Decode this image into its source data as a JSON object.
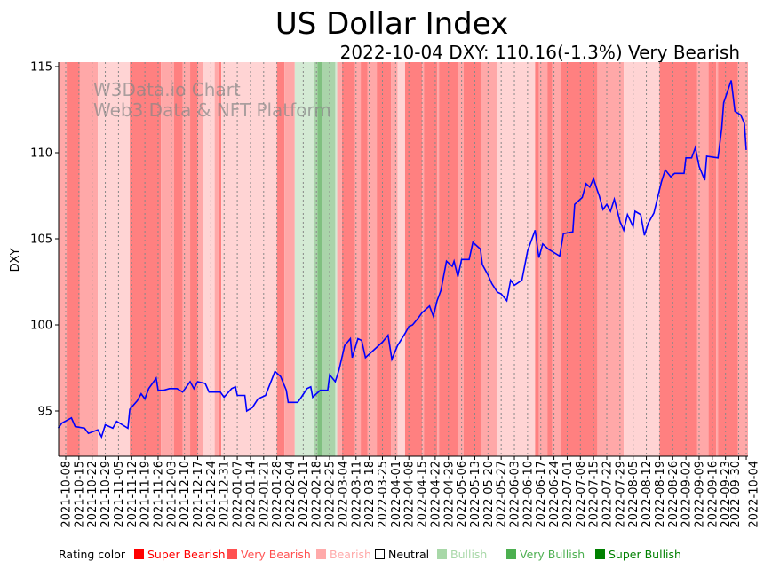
{
  "chart_data": {
    "type": "line",
    "title": "US Dollar Index",
    "subtitle": "2022-10-04 DXY: 110.16(-1.3%) Very Bearish",
    "watermark": [
      "W3Data.io Chart",
      "Web3 Data & NFT Platform"
    ],
    "xlabel": "",
    "ylabel": "DXY",
    "start_date": "2021-10-04",
    "x_unit": "days since 2021-10-04",
    "xlim": [
      0,
      366
    ],
    "ylim": [
      92.37,
      115.26
    ],
    "yticks": [
      95,
      100,
      105,
      110,
      115
    ],
    "xtick_labels": [
      "2021-10-08",
      "2021-10-15",
      "2021-10-22",
      "2021-10-29",
      "2021-11-05",
      "2021-11-12",
      "2021-11-19",
      "2021-11-26",
      "2021-12-03",
      "2021-12-10",
      "2021-12-17",
      "2021-12-24",
      "2021-12-31",
      "2022-01-07",
      "2022-01-14",
      "2022-01-21",
      "2022-01-28",
      "2022-02-04",
      "2022-02-11",
      "2022-02-18",
      "2022-02-25",
      "2022-03-04",
      "2022-03-11",
      "2022-03-18",
      "2022-03-25",
      "2022-04-01",
      "2022-04-08",
      "2022-04-15",
      "2022-04-22",
      "2022-04-29",
      "2022-05-06",
      "2022-05-13",
      "2022-05-20",
      "2022-05-27",
      "2022-06-03",
      "2022-06-10",
      "2022-06-17",
      "2022-06-24",
      "2022-07-01",
      "2022-07-08",
      "2022-07-15",
      "2022-07-22",
      "2022-07-29",
      "2022-08-05",
      "2022-08-12",
      "2022-08-19",
      "2022-08-26",
      "2022-09-02",
      "2022-09-09",
      "2022-09-16",
      "2022-09-23",
      "2022-09-30",
      "2022-10-04"
    ],
    "grid": "vertical dotted",
    "series": [
      {
        "name": "DXY",
        "color": "#0000ff",
        "points": [
          [
            0,
            94.0
          ],
          [
            2,
            94.3
          ],
          [
            7,
            94.6
          ],
          [
            9,
            94.1
          ],
          [
            14,
            94.0
          ],
          [
            16,
            93.7
          ],
          [
            21,
            93.9
          ],
          [
            23,
            93.5
          ],
          [
            25,
            94.2
          ],
          [
            29,
            94.0
          ],
          [
            31,
            94.4
          ],
          [
            37,
            94.0
          ],
          [
            38,
            95.1
          ],
          [
            42,
            95.6
          ],
          [
            44,
            96.0
          ],
          [
            46,
            95.7
          ],
          [
            48,
            96.3
          ],
          [
            52,
            96.9
          ],
          [
            53,
            96.2
          ],
          [
            56,
            96.2
          ],
          [
            59,
            96.3
          ],
          [
            63,
            96.3
          ],
          [
            66,
            96.1
          ],
          [
            70,
            96.7
          ],
          [
            72,
            96.3
          ],
          [
            74,
            96.7
          ],
          [
            78,
            96.6
          ],
          [
            80,
            96.1
          ],
          [
            86,
            96.1
          ],
          [
            88,
            95.8
          ],
          [
            92,
            96.3
          ],
          [
            94,
            96.4
          ],
          [
            95,
            95.9
          ],
          [
            99,
            95.9
          ],
          [
            100,
            95.0
          ],
          [
            103,
            95.2
          ],
          [
            106,
            95.7
          ],
          [
            110,
            95.9
          ],
          [
            115,
            97.3
          ],
          [
            118,
            97.0
          ],
          [
            121,
            96.2
          ],
          [
            122,
            95.5
          ],
          [
            127,
            95.5
          ],
          [
            129,
            95.8
          ],
          [
            132,
            96.3
          ],
          [
            134,
            96.4
          ],
          [
            135,
            95.8
          ],
          [
            139,
            96.2
          ],
          [
            143,
            96.2
          ],
          [
            144,
            97.1
          ],
          [
            147,
            96.7
          ],
          [
            149,
            97.4
          ],
          [
            152,
            98.8
          ],
          [
            155,
            99.2
          ],
          [
            156,
            98.1
          ],
          [
            159,
            99.2
          ],
          [
            161,
            99.1
          ],
          [
            163,
            98.1
          ],
          [
            166,
            98.4
          ],
          [
            172,
            99.0
          ],
          [
            175,
            99.4
          ],
          [
            177,
            98.0
          ],
          [
            180,
            98.8
          ],
          [
            184,
            99.5
          ],
          [
            186,
            99.9
          ],
          [
            188,
            100.0
          ],
          [
            191,
            100.4
          ],
          [
            193,
            100.7
          ],
          [
            197,
            101.1
          ],
          [
            199,
            100.5
          ],
          [
            201,
            101.4
          ],
          [
            203,
            102.0
          ],
          [
            206,
            103.7
          ],
          [
            209,
            103.4
          ],
          [
            210,
            103.7
          ],
          [
            212,
            102.8
          ],
          [
            214,
            103.8
          ],
          [
            218,
            103.8
          ],
          [
            220,
            104.8
          ],
          [
            224,
            104.4
          ],
          [
            225,
            103.5
          ],
          [
            228,
            102.9
          ],
          [
            230,
            102.4
          ],
          [
            233,
            101.9
          ],
          [
            235,
            101.8
          ],
          [
            238,
            101.4
          ],
          [
            240,
            102.6
          ],
          [
            242,
            102.3
          ],
          [
            246,
            102.6
          ],
          [
            249,
            104.3
          ],
          [
            253,
            105.5
          ],
          [
            255,
            103.9
          ],
          [
            257,
            104.7
          ],
          [
            260,
            104.4
          ],
          [
            263,
            104.2
          ],
          [
            266,
            104.0
          ],
          [
            268,
            105.3
          ],
          [
            273,
            105.4
          ],
          [
            274,
            107.0
          ],
          [
            278,
            107.4
          ],
          [
            280,
            108.2
          ],
          [
            282,
            108.0
          ],
          [
            284,
            108.5
          ],
          [
            286,
            107.8
          ],
          [
            287,
            107.5
          ],
          [
            289,
            106.7
          ],
          [
            291,
            107.0
          ],
          [
            293,
            106.6
          ],
          [
            295,
            107.3
          ],
          [
            298,
            106.0
          ],
          [
            300,
            105.5
          ],
          [
            302,
            106.4
          ],
          [
            305,
            105.7
          ],
          [
            306,
            106.6
          ],
          [
            309,
            106.4
          ],
          [
            311,
            105.2
          ],
          [
            313,
            105.9
          ],
          [
            316,
            106.5
          ],
          [
            320,
            108.3
          ],
          [
            322,
            109.0
          ],
          [
            325,
            108.6
          ],
          [
            327,
            108.8
          ],
          [
            332,
            108.8
          ],
          [
            333,
            109.7
          ],
          [
            336,
            109.7
          ],
          [
            338,
            110.3
          ],
          [
            340,
            109.2
          ],
          [
            343,
            108.4
          ],
          [
            344,
            109.8
          ],
          [
            350,
            109.7
          ],
          [
            352,
            111.4
          ],
          [
            353,
            112.9
          ],
          [
            357,
            114.2
          ],
          [
            359,
            112.4
          ],
          [
            362,
            112.2
          ],
          [
            364,
            111.7
          ],
          [
            365,
            110.16
          ]
        ]
      }
    ],
    "rating_bands": [
      [
        0,
        4.5,
        "VB"
      ],
      [
        4.5,
        11.5,
        "SB"
      ],
      [
        11.5,
        21,
        "VB"
      ],
      [
        21,
        38,
        "B"
      ],
      [
        38,
        54.5,
        "SB"
      ],
      [
        54.5,
        61.5,
        "VB"
      ],
      [
        61.5,
        66,
        "SB"
      ],
      [
        66,
        70,
        "VB"
      ],
      [
        70,
        74,
        "SB"
      ],
      [
        74,
        77,
        "VB"
      ],
      [
        77,
        83,
        "B"
      ],
      [
        83,
        85,
        "VB"
      ],
      [
        85,
        86.5,
        "SB"
      ],
      [
        86.5,
        116,
        "B"
      ],
      [
        116,
        120,
        "SB"
      ],
      [
        120,
        125.5,
        "VB"
      ],
      [
        125.5,
        135.5,
        "Bu"
      ],
      [
        135.5,
        137.5,
        "VBu"
      ],
      [
        137.5,
        140,
        "SBu"
      ],
      [
        140,
        147,
        "VBu"
      ],
      [
        147,
        148,
        "Bu"
      ],
      [
        148,
        150.5,
        "VB"
      ],
      [
        150.5,
        157.5,
        "SB"
      ],
      [
        157.5,
        160.5,
        "VB"
      ],
      [
        160.5,
        164,
        "SB"
      ],
      [
        164,
        169,
        "VB"
      ],
      [
        169,
        176.5,
        "SB"
      ],
      [
        176.5,
        180,
        "VB"
      ],
      [
        180,
        184,
        "B"
      ],
      [
        184,
        193,
        "SB"
      ],
      [
        193,
        194,
        "VB"
      ],
      [
        194,
        201,
        "SB"
      ],
      [
        201,
        202,
        "VB"
      ],
      [
        202,
        212,
        "SB"
      ],
      [
        212,
        215,
        "VB"
      ],
      [
        215,
        224.5,
        "SB"
      ],
      [
        224.5,
        233,
        "VB"
      ],
      [
        233,
        253,
        "B"
      ],
      [
        253,
        255,
        "SB"
      ],
      [
        255,
        259.5,
        "VB"
      ],
      [
        259.5,
        262,
        "SB"
      ],
      [
        262,
        266.5,
        "VB"
      ],
      [
        266.5,
        286,
        "SB"
      ],
      [
        286,
        300,
        "VB"
      ],
      [
        300,
        319,
        "B"
      ],
      [
        319,
        339,
        "SB"
      ],
      [
        339,
        345,
        "VB"
      ],
      [
        345,
        349,
        "SB"
      ],
      [
        349,
        350,
        "VB"
      ],
      [
        350,
        360.5,
        "SB"
      ],
      [
        360.5,
        366,
        "VB"
      ]
    ],
    "band_colors": {
      "SB": "#ff8080",
      "VB": "#ffa8a8",
      "B": "#ffd4d4",
      "N": "#ffffff",
      "Bu": "#d4ead4",
      "VBu": "#aad4aa",
      "SBu": "#80c080"
    },
    "legend": {
      "title": "Rating color",
      "placement": "bottom",
      "items": [
        {
          "label": "Super Bearish",
          "color": "#ff0000"
        },
        {
          "label": "Very Bearish",
          "color": "#ff5050"
        },
        {
          "label": "Bearish",
          "color": "#ffaaaa"
        },
        {
          "label": "Neutral",
          "color": "#000000",
          "hollow": true
        },
        {
          "label": "Bullish",
          "color": "#a8d8a8"
        },
        {
          "label": "Very Bullish",
          "color": "#4caf50"
        },
        {
          "label": "Super Bullish",
          "color": "#008000"
        }
      ]
    }
  }
}
